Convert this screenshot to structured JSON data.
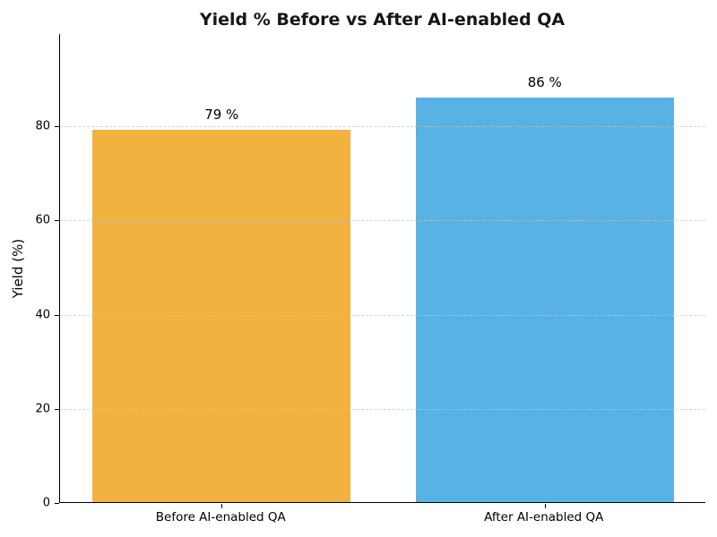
{
  "chart_data": {
    "type": "bar",
    "title": "Yield % Before vs After AI-enabled QA",
    "categories": [
      "Before AI-enabled QA",
      "After AI-enabled QA"
    ],
    "values": [
      79,
      86
    ],
    "value_labels": [
      "79 %",
      "86 %"
    ],
    "bar_colors": [
      "#f2b23f",
      "#58b2e4"
    ],
    "xlabel": "",
    "ylabel": "Yield (%)",
    "yticks": [
      0,
      20,
      40,
      60,
      80
    ],
    "ylim": [
      0,
      99.6
    ],
    "bar_width_fraction": 0.8,
    "grid": {
      "axis": "y",
      "style": "dashed",
      "color": "#c3c3c3",
      "above_bars": true
    },
    "legend": "none",
    "background_color": "#ffffff",
    "title_color": "#15151e",
    "text_color": "#000000",
    "spine_color": "#000000"
  }
}
